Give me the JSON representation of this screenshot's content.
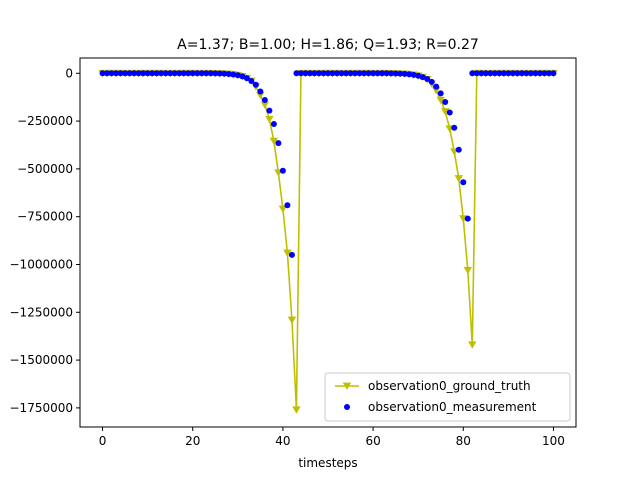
{
  "chart_data": {
    "type": "line",
    "title": "A=1.37; B=1.00; H=1.86; Q=1.93; R=0.27",
    "xlabel": "timesteps",
    "ylabel": "",
    "xlim": [
      -5,
      105
    ],
    "ylim": [
      -1850000,
      80000
    ],
    "xticks": [
      0,
      20,
      40,
      60,
      80,
      100
    ],
    "xtick_labels": [
      "0",
      "20",
      "40",
      "60",
      "80",
      "100"
    ],
    "yticks": [
      0,
      -250000,
      -500000,
      -750000,
      -1000000,
      -1250000,
      -1500000,
      -1750000
    ],
    "ytick_labels": [
      "0",
      "−250000",
      "−500000",
      "−750000",
      "−1000000",
      "−1250000",
      "−1500000",
      "−1750000"
    ],
    "grid": false,
    "legend_position": "bottom-right",
    "colors": {
      "ground_truth": "#bfbf00",
      "measurement": "#0000ff"
    },
    "series": [
      {
        "name": "observation0_ground_truth",
        "kind": "line-triangle-markers",
        "x": [
          0,
          1,
          2,
          3,
          4,
          5,
          6,
          7,
          8,
          9,
          10,
          11,
          12,
          13,
          14,
          15,
          16,
          17,
          18,
          19,
          20,
          21,
          22,
          23,
          24,
          25,
          26,
          27,
          28,
          29,
          30,
          31,
          32,
          33,
          34,
          35,
          36,
          37,
          38,
          39,
          40,
          41,
          42,
          43,
          44,
          45,
          46,
          47,
          48,
          49,
          50,
          51,
          52,
          53,
          54,
          55,
          56,
          57,
          58,
          59,
          60,
          61,
          62,
          63,
          64,
          65,
          66,
          67,
          68,
          69,
          70,
          71,
          72,
          73,
          74,
          75,
          76,
          77,
          78,
          79,
          80,
          81,
          82,
          83,
          84,
          85,
          86,
          87,
          88,
          89,
          90,
          91,
          92,
          93,
          94,
          95,
          96,
          97,
          98,
          99,
          100
        ],
        "y": [
          0,
          0,
          0,
          0,
          0,
          0,
          0,
          0,
          0,
          0,
          0,
          0,
          0,
          0,
          0,
          0,
          0,
          0,
          0,
          0,
          0,
          0,
          0,
          0,
          0,
          -500,
          -1000,
          -2000,
          -3500,
          -6000,
          -10000,
          -16000,
          -25000,
          -40000,
          -70000,
          -115000,
          -165000,
          -240000,
          -355000,
          -520000,
          -710000,
          -940000,
          -1290000,
          -1760000,
          0,
          0,
          0,
          0,
          0,
          0,
          0,
          0,
          0,
          0,
          0,
          0,
          0,
          0,
          0,
          0,
          0,
          0,
          0,
          0,
          -500,
          -1000,
          -2000,
          -3000,
          -5000,
          -8000,
          -13000,
          -20000,
          -32000,
          -55000,
          -90000,
          -140000,
          -200000,
          -290000,
          -410000,
          -550000,
          -760000,
          -1030000,
          -1420000,
          0,
          0,
          0,
          0,
          0,
          0,
          0,
          0,
          0,
          0,
          0,
          0,
          0,
          0,
          0,
          0,
          0,
          0
        ]
      },
      {
        "name": "observation0_measurement",
        "kind": "scatter-dots",
        "x": [
          0,
          1,
          2,
          3,
          4,
          5,
          6,
          7,
          8,
          9,
          10,
          11,
          12,
          13,
          14,
          15,
          16,
          17,
          18,
          19,
          20,
          21,
          22,
          23,
          24,
          25,
          26,
          27,
          28,
          29,
          30,
          31,
          32,
          33,
          34,
          35,
          36,
          37,
          38,
          39,
          40,
          41,
          42,
          43,
          44,
          45,
          46,
          47,
          48,
          49,
          50,
          51,
          52,
          53,
          54,
          55,
          56,
          57,
          58,
          59,
          60,
          61,
          62,
          63,
          64,
          65,
          66,
          67,
          68,
          69,
          70,
          71,
          72,
          73,
          74,
          75,
          76,
          77,
          78,
          79,
          80,
          81,
          82,
          83,
          84,
          85,
          86,
          87,
          88,
          89,
          90,
          91,
          92,
          93,
          94,
          95,
          96,
          97,
          98,
          99,
          100
        ],
        "y": [
          0,
          0,
          0,
          0,
          0,
          0,
          0,
          0,
          0,
          0,
          0,
          0,
          0,
          0,
          0,
          0,
          0,
          0,
          0,
          0,
          0,
          0,
          0,
          0,
          0,
          -500,
          -1000,
          -2000,
          -3500,
          -6000,
          -10000,
          -16000,
          -25000,
          -40000,
          -60000,
          -95000,
          -140000,
          -195000,
          -265000,
          -365000,
          -510000,
          -690000,
          -950000,
          0,
          0,
          0,
          0,
          0,
          0,
          0,
          0,
          0,
          0,
          0,
          0,
          0,
          0,
          0,
          0,
          0,
          0,
          0,
          0,
          0,
          -500,
          -1000,
          -2000,
          -3000,
          -5000,
          -8000,
          -13000,
          -20000,
          -30000,
          -45000,
          -70000,
          -105000,
          -150000,
          -205000,
          -285000,
          -400000,
          -570000,
          -760000,
          0,
          0,
          0,
          0,
          0,
          0,
          0,
          0,
          0,
          0,
          0,
          0,
          0,
          0,
          0,
          0,
          0,
          0,
          0
        ]
      }
    ]
  }
}
